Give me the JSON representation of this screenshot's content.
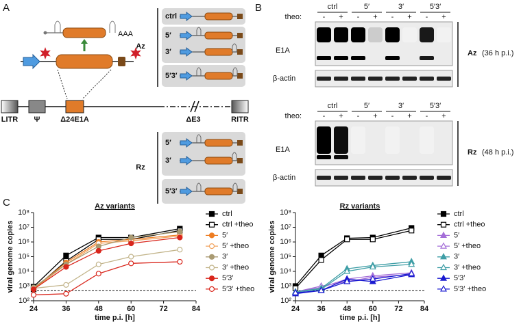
{
  "panel_a": {
    "label": "A",
    "transcript_tail": "AAA",
    "genome": [
      "LITR",
      "Ψ",
      "Δ24E1A",
      "ΔE3",
      "RITR"
    ],
    "groups": [
      {
        "name": "Az",
        "rows": [
          "ctrl",
          "5′",
          "3′",
          "5′3′"
        ]
      },
      {
        "name": "Rz",
        "rows": [
          "5′",
          "3′",
          "5′3′"
        ]
      }
    ]
  },
  "panel_b": {
    "label": "B",
    "blots": [
      {
        "columns": [
          "ctrl",
          "5′",
          "3′",
          "5′3′"
        ],
        "theo_label": "theo:",
        "theo": [
          "-",
          "+",
          "-",
          "+",
          "-",
          "+",
          "-",
          "+"
        ],
        "rows": [
          "E1A",
          "β-actin"
        ],
        "construct": "Az",
        "condition": "(36 h p.i.)"
      },
      {
        "columns": [
          "ctrl",
          "5′",
          "3′",
          "5′3′"
        ],
        "theo_label": "theo:",
        "theo": [
          "-",
          "+",
          "-",
          "+",
          "-",
          "+",
          "-",
          "+"
        ],
        "rows": [
          "E1A",
          "β-actin"
        ],
        "construct": "Rz",
        "condition": "(48 h p.i.)"
      }
    ]
  },
  "panel_c": {
    "label": "C"
  },
  "chart_data": [
    {
      "type": "line",
      "title": "Az variants",
      "xlabel": "time p.i. [h]",
      "ylabel": "viral genome copies",
      "x": [
        24,
        36,
        48,
        60,
        78
      ],
      "xlim": [
        24,
        84
      ],
      "xticks": [
        24,
        36,
        48,
        60,
        72,
        84
      ],
      "ylim": [
        100,
        100000000
      ],
      "log_y": true,
      "hline": 500,
      "yticks": [
        {
          "value": 100,
          "label": "10²"
        },
        {
          "value": 1000,
          "label": "10³"
        },
        {
          "value": 10000,
          "label": "10⁴"
        },
        {
          "value": 100000,
          "label": "10⁵"
        },
        {
          "value": 1000000,
          "label": "10⁶"
        },
        {
          "value": 10000000,
          "label": "10⁷"
        },
        {
          "value": 100000000,
          "label": "10⁸"
        }
      ],
      "series": [
        {
          "name": "ctrl",
          "color": "#000000",
          "marker": "square",
          "filled": true,
          "values": [
            900,
            120000,
            2000000,
            2000000,
            8000000
          ]
        },
        {
          "name": "ctrl +theo",
          "color": "#000000",
          "marker": "square",
          "filled": false,
          "values": [
            600,
            50000,
            1500000,
            1500000,
            6000000
          ]
        },
        {
          "name": "5′",
          "color": "#ee7d22",
          "marker": "circle",
          "filled": true,
          "values": [
            700,
            40000,
            1000000,
            1500000,
            3000000
          ]
        },
        {
          "name": "5′ +theo",
          "color": "#f2a25c",
          "marker": "circle",
          "filled": false,
          "values": [
            600,
            30000,
            800000,
            1200000,
            2500000
          ]
        },
        {
          "name": "3′",
          "color": "#a99a72",
          "marker": "circle",
          "filled": true,
          "values": [
            800,
            30000,
            500000,
            2000000,
            5000000
          ]
        },
        {
          "name": "3′ +theo",
          "color": "#c2b48a",
          "marker": "circle",
          "filled": false,
          "values": [
            700,
            1200,
            30000,
            100000,
            300000
          ]
        },
        {
          "name": "5′3′",
          "color": "#d9261c",
          "marker": "circle",
          "filled": true,
          "values": [
            600,
            20000,
            250000,
            800000,
            2000000
          ]
        },
        {
          "name": "5′3′ +theo",
          "color": "#d9261c",
          "marker": "circle",
          "filled": false,
          "values": [
            250,
            300,
            7000,
            35000,
            45000
          ]
        }
      ]
    },
    {
      "type": "line",
      "title": "Rz variants",
      "xlabel": "time p.i. [h]",
      "ylabel": "viral genome copies",
      "x": [
        24,
        36,
        48,
        60,
        78
      ],
      "xlim": [
        24,
        84
      ],
      "xticks": [
        24,
        36,
        48,
        60,
        72,
        84
      ],
      "ylim": [
        100,
        100000000
      ],
      "log_y": true,
      "hline": 500,
      "yticks": [
        {
          "value": 100,
          "label": "10²"
        },
        {
          "value": 1000,
          "label": "10³"
        },
        {
          "value": 10000,
          "label": "10⁴"
        },
        {
          "value": 100000,
          "label": "10⁵"
        },
        {
          "value": 1000000,
          "label": "10⁶"
        },
        {
          "value": 10000000,
          "label": "10⁷"
        },
        {
          "value": 100000000,
          "label": "10⁸"
        }
      ],
      "series": [
        {
          "name": "ctrl",
          "color": "#000000",
          "marker": "square",
          "filled": true,
          "values": [
            1000,
            120000,
            1800000,
            2000000,
            9000000
          ]
        },
        {
          "name": "ctrl +theo",
          "color": "#000000",
          "marker": "square",
          "filled": false,
          "values": [
            700,
            60000,
            1500000,
            1500000,
            6000000
          ]
        },
        {
          "name": "5′",
          "color": "#a46ed8",
          "marker": "triangle",
          "filled": true,
          "values": [
            400,
            800,
            3000,
            5000,
            8000
          ]
        },
        {
          "name": "5′ +theo",
          "color": "#a46ed8",
          "marker": "triangle",
          "filled": false,
          "values": [
            400,
            1000,
            2000,
            4000,
            6000
          ]
        },
        {
          "name": "3′",
          "color": "#3f9ea6",
          "marker": "triangle",
          "filled": true,
          "values": [
            400,
            700,
            15000,
            25000,
            45000
          ]
        },
        {
          "name": "3′ +theo",
          "color": "#3f9ea6",
          "marker": "triangle",
          "filled": false,
          "values": [
            400,
            600,
            10000,
            20000,
            30000
          ]
        },
        {
          "name": "5′3′",
          "color": "#1a1ad0",
          "marker": "triangle",
          "filled": true,
          "values": [
            300,
            500,
            3000,
            2000,
            6000
          ]
        },
        {
          "name": "5′3′ +theo",
          "color": "#1a1ad0",
          "marker": "triangle",
          "filled": false,
          "values": [
            350,
            500,
            2000,
            3000,
            7000
          ]
        }
      ]
    }
  ]
}
